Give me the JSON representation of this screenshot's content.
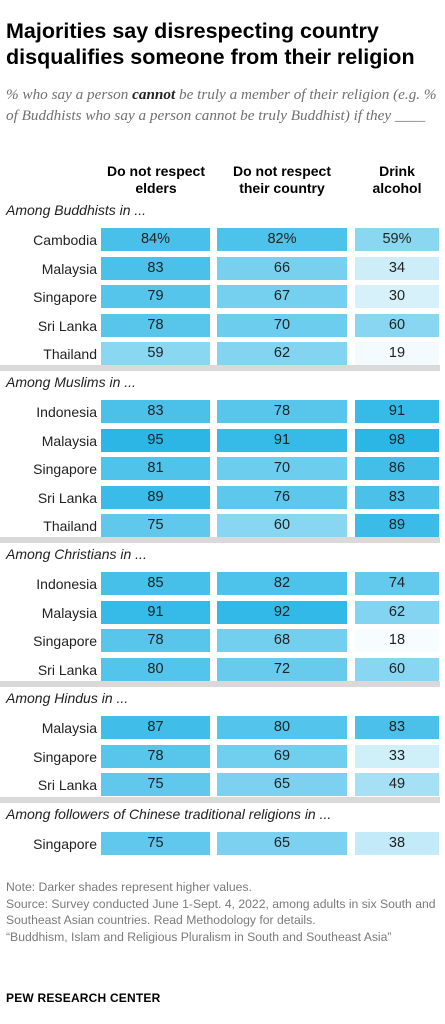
{
  "title": "Majorities say disrespecting country disqualifies someone from their religion",
  "subtitle": {
    "before": "% who say a person ",
    "emphasis": "cannot",
    "after": " be truly a member of their religion (e.g. % of Buddhists who say a person cannot be truly Buddhist) if they ____"
  },
  "chart_data": {
    "type": "table",
    "columns": [
      "Do not respect elders",
      "Do not respect their country",
      "Drink alcohol"
    ],
    "color_scale": {
      "low": "#ffffff",
      "high": "#2bb6e6"
    },
    "groups": [
      {
        "label": "Among Buddhists in ...",
        "rows": [
          {
            "label": "Cambodia",
            "values": [
              84,
              82,
              59
            ],
            "display": [
              "84%",
              "82%",
              "59%"
            ]
          },
          {
            "label": "Malaysia",
            "values": [
              83,
              66,
              34
            ]
          },
          {
            "label": "Singapore",
            "values": [
              79,
              67,
              30
            ]
          },
          {
            "label": "Sri Lanka",
            "values": [
              78,
              70,
              60
            ]
          },
          {
            "label": "Thailand",
            "values": [
              59,
              62,
              19
            ]
          }
        ]
      },
      {
        "label": "Among Muslims in ...",
        "rows": [
          {
            "label": "Indonesia",
            "values": [
              83,
              78,
              91
            ]
          },
          {
            "label": "Malaysia",
            "values": [
              95,
              91,
              98
            ]
          },
          {
            "label": "Singapore",
            "values": [
              81,
              70,
              86
            ]
          },
          {
            "label": "Sri Lanka",
            "values": [
              89,
              76,
              83
            ]
          },
          {
            "label": "Thailand",
            "values": [
              75,
              60,
              89
            ]
          }
        ]
      },
      {
        "label": "Among Christians in ...",
        "rows": [
          {
            "label": "Indonesia",
            "values": [
              85,
              82,
              74
            ]
          },
          {
            "label": "Malaysia",
            "values": [
              91,
              92,
              62
            ]
          },
          {
            "label": "Singapore",
            "values": [
              78,
              68,
              18
            ]
          },
          {
            "label": "Sri Lanka",
            "values": [
              80,
              72,
              60
            ]
          }
        ]
      },
      {
        "label": "Among Hindus in ...",
        "rows": [
          {
            "label": "Malaysia",
            "values": [
              87,
              80,
              83
            ]
          },
          {
            "label": "Singapore",
            "values": [
              78,
              69,
              33
            ]
          },
          {
            "label": "Sri Lanka",
            "values": [
              75,
              65,
              49
            ]
          }
        ]
      },
      {
        "label": "Among followers of Chinese traditional religions in ...",
        "rows": [
          {
            "label": "Singapore",
            "values": [
              75,
              65,
              38
            ]
          }
        ]
      }
    ]
  },
  "notes": {
    "line1": "Note: Darker shades represent higher values.",
    "line2": "Source: Survey conducted June 1-Sept. 4, 2022, among adults in six South and Southeast Asian countries. Read Methodology for details.",
    "line3": "“Buddhism, Islam and Religious Pluralism in South and Southeast Asia”"
  },
  "footer": "PEW RESEARCH CENTER"
}
